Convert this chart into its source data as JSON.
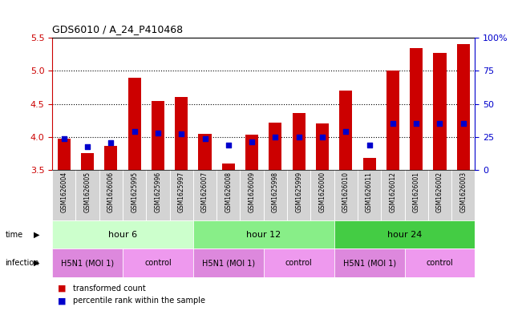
{
  "title": "GDS6010 / A_24_P410468",
  "samples": [
    "GSM1626004",
    "GSM1626005",
    "GSM1626006",
    "GSM1625995",
    "GSM1625996",
    "GSM1625997",
    "GSM1626007",
    "GSM1626008",
    "GSM1626009",
    "GSM1625998",
    "GSM1625999",
    "GSM1626000",
    "GSM1626010",
    "GSM1626011",
    "GSM1626012",
    "GSM1626001",
    "GSM1626002",
    "GSM1626003"
  ],
  "bar_values": [
    3.97,
    3.76,
    3.87,
    4.9,
    4.55,
    4.6,
    4.05,
    3.6,
    4.03,
    4.22,
    4.36,
    4.2,
    4.7,
    3.68,
    5.0,
    5.35,
    5.27,
    5.4
  ],
  "dot_values": [
    3.97,
    3.86,
    3.92,
    4.08,
    4.06,
    4.05,
    3.97,
    3.88,
    3.93,
    4.0,
    4.0,
    4.0,
    4.08,
    3.88,
    4.2,
    4.2,
    4.2,
    4.2
  ],
  "ylim": [
    3.5,
    5.5
  ],
  "yticks_left": [
    3.5,
    4.0,
    4.5,
    5.0,
    5.5
  ],
  "yticks_right_vals": [
    0,
    25,
    50,
    75,
    100
  ],
  "yticks_right_labels": [
    "0",
    "25",
    "50",
    "75",
    "100%"
  ],
  "bar_color": "#cc0000",
  "dot_color": "#0000cc",
  "bar_bottom": 3.5,
  "chart_bg": "#ffffff",
  "time_groups": [
    {
      "label": "hour 6",
      "start": 0,
      "end": 6,
      "color": "#ccffcc"
    },
    {
      "label": "hour 12",
      "start": 6,
      "end": 12,
      "color": "#88ee88"
    },
    {
      "label": "hour 24",
      "start": 12,
      "end": 18,
      "color": "#44cc44"
    }
  ],
  "infection_h5n1_color": "#dd88dd",
  "infection_ctrl_color": "#ee99ee",
  "infection_groups": [
    {
      "label": "H5N1 (MOI 1)",
      "start": 0,
      "end": 3,
      "h5n1": true
    },
    {
      "label": "control",
      "start": 3,
      "end": 6,
      "h5n1": false
    },
    {
      "label": "H5N1 (MOI 1)",
      "start": 6,
      "end": 9,
      "h5n1": true
    },
    {
      "label": "control",
      "start": 9,
      "end": 12,
      "h5n1": false
    },
    {
      "label": "H5N1 (MOI 1)",
      "start": 12,
      "end": 15,
      "h5n1": true
    },
    {
      "label": "control",
      "start": 15,
      "end": 18,
      "h5n1": false
    }
  ],
  "bg_color": "#ffffff",
  "label_color_left": "#cc0000",
  "label_color_right": "#0000cc",
  "sample_bg": "#d3d3d3",
  "dotted_lines": [
    4.0,
    4.5,
    5.0
  ]
}
